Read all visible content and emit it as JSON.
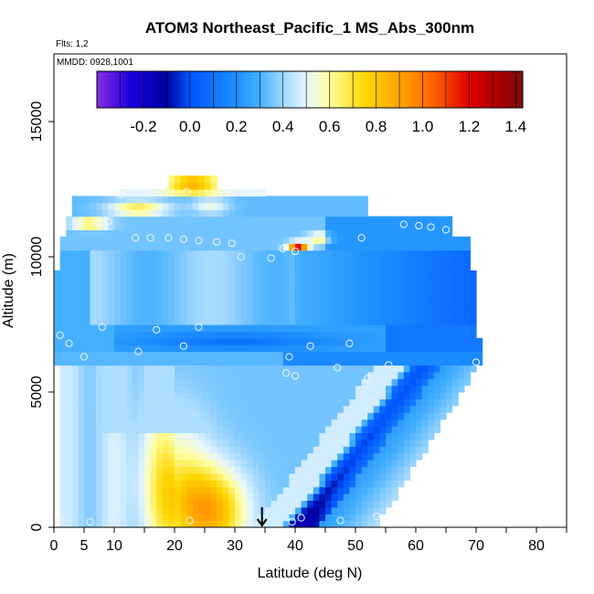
{
  "chart_data": {
    "type": "heatmap",
    "title": "ATOM3 Northeast_Pacific_1 MS_Abs_300nm",
    "flights_label": "Flts: 1,2",
    "dates_label": "MMDD: 0928,1001",
    "xlabel": "Latitude (deg N)",
    "ylabel": "Altitude (m)",
    "xlim": [
      0,
      85
    ],
    "ylim": [
      0,
      17500
    ],
    "x_ticks": [
      0,
      5,
      10,
      20,
      30,
      40,
      50,
      60,
      70,
      80
    ],
    "x_tick_labels": [
      "0",
      "5",
      "10",
      "20",
      "30",
      "40",
      "50",
      "60",
      "70",
      "80"
    ],
    "y_ticks": [
      0,
      5000,
      10000,
      15000
    ],
    "y_tick_labels": [
      "0",
      "5000",
      "10000",
      "15000"
    ],
    "colorbar": {
      "range": [
        -0.4,
        1.43
      ],
      "ticks": [
        -0.2,
        0.0,
        0.2,
        0.4,
        0.6,
        0.8,
        1.0,
        1.2,
        1.4
      ],
      "tick_labels": [
        "-0.2",
        "0.0",
        "0.2",
        "0.4",
        "0.6",
        "0.8",
        "1.0",
        "1.2",
        "1.4"
      ],
      "stops": [
        {
          "v": -0.4,
          "c": "#8a2be2"
        },
        {
          "v": -0.25,
          "c": "#1a00e0"
        },
        {
          "v": -0.1,
          "c": "#0000a0"
        },
        {
          "v": 0.0,
          "c": "#0055ff"
        },
        {
          "v": 0.2,
          "c": "#1e90ff"
        },
        {
          "v": 0.3,
          "c": "#45b0ff"
        },
        {
          "v": 0.4,
          "c": "#a0d8ff"
        },
        {
          "v": 0.5,
          "c": "#e6f6ff"
        },
        {
          "v": 0.6,
          "c": "#ffffa0"
        },
        {
          "v": 0.75,
          "c": "#ffd700"
        },
        {
          "v": 0.9,
          "c": "#ffa500"
        },
        {
          "v": 1.05,
          "c": "#ff6000"
        },
        {
          "v": 1.2,
          "c": "#e00000"
        },
        {
          "v": 1.35,
          "c": "#a00000"
        },
        {
          "v": 1.43,
          "c": "#7a1010"
        }
      ]
    },
    "arrow_latitude": 34.5,
    "sample_points": [
      {
        "lat": 1,
        "alt": 7100
      },
      {
        "lat": 2.5,
        "alt": 6800
      },
      {
        "lat": 5,
        "alt": 6300
      },
      {
        "lat": 1.5,
        "alt": 11900
      },
      {
        "lat": 4,
        "alt": 11300
      },
      {
        "lat": 7,
        "alt": 11300
      },
      {
        "lat": 9,
        "alt": 11300
      },
      {
        "lat": 8,
        "alt": 7400
      },
      {
        "lat": 14,
        "alt": 6500
      },
      {
        "lat": 17,
        "alt": 7300
      },
      {
        "lat": 21.5,
        "alt": 6700
      },
      {
        "lat": 24,
        "alt": 7400
      },
      {
        "lat": 13.5,
        "alt": 10700
      },
      {
        "lat": 16,
        "alt": 10700
      },
      {
        "lat": 19,
        "alt": 10700
      },
      {
        "lat": 21.5,
        "alt": 10650
      },
      {
        "lat": 24,
        "alt": 10600
      },
      {
        "lat": 27,
        "alt": 10550
      },
      {
        "lat": 29.5,
        "alt": 10500
      },
      {
        "lat": 31,
        "alt": 10000
      },
      {
        "lat": 36,
        "alt": 9950
      },
      {
        "lat": 38,
        "alt": 10300
      },
      {
        "lat": 40,
        "alt": 10200
      },
      {
        "lat": 44,
        "alt": 10800
      },
      {
        "lat": 51,
        "alt": 10700
      },
      {
        "lat": 58,
        "alt": 11200
      },
      {
        "lat": 60.5,
        "alt": 11150
      },
      {
        "lat": 62.5,
        "alt": 11100
      },
      {
        "lat": 65,
        "alt": 11000
      },
      {
        "lat": 68,
        "alt": 10900
      },
      {
        "lat": 29,
        "alt": 12500
      },
      {
        "lat": 11,
        "alt": 12300
      },
      {
        "lat": 22,
        "alt": 12400
      },
      {
        "lat": 39,
        "alt": 6300
      },
      {
        "lat": 42.5,
        "alt": 6700
      },
      {
        "lat": 49,
        "alt": 6800
      },
      {
        "lat": 47,
        "alt": 5900
      },
      {
        "lat": 38.5,
        "alt": 5700
      },
      {
        "lat": 40,
        "alt": 5600
      },
      {
        "lat": 52,
        "alt": 5500
      },
      {
        "lat": 55.5,
        "alt": 6000
      },
      {
        "lat": 70,
        "alt": 6100
      },
      {
        "lat": 1,
        "alt": 300
      },
      {
        "lat": 6,
        "alt": 200
      },
      {
        "lat": 15.5,
        "alt": 250
      },
      {
        "lat": 22.5,
        "alt": 250
      },
      {
        "lat": 39.5,
        "alt": 200
      },
      {
        "lat": 41,
        "alt": 350
      },
      {
        "lat": 47.5,
        "alt": 250
      },
      {
        "lat": 53.5,
        "alt": 400
      }
    ]
  }
}
